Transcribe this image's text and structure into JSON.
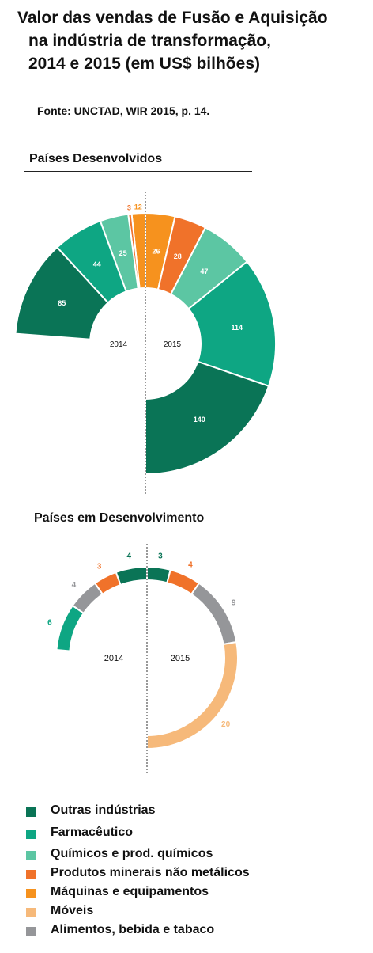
{
  "title_lines": [
    "Valor das vendas de Fusão e Aquisição",
    "na indústria de transformação,",
    "2014 e 2015 (em US$ bilhões)"
  ],
  "source": "Fonte: UNCTAD, WIR 2015, p. 14.",
  "colors": {
    "Outras indústrias": "#0a7456",
    "Farmacêutico": "#0ea683",
    "Químicos e prod. químicos": "#5cc6a3",
    "Produtos minerais não metálicos": "#f0722a",
    "Máquinas e equipamentos": "#f6921e",
    "Móveis": "#f6b97a",
    "Alimentos, bebida e tabaco": "#959699"
  },
  "legend": [
    "Outras indústrias",
    "Farmacêutico",
    "Químicos e prod. químicos",
    "Produtos minerais não metálicos",
    "Máquinas e equipamentos",
    "Móveis",
    "Alimentos, bebida e tabaco"
  ],
  "chart_data": [
    {
      "type": "pie",
      "title": "Países Desenvolvidos",
      "unit": "US$ bilhões",
      "halves": [
        {
          "label": "2014",
          "slices": [
            {
              "category": "Máquinas e equipamentos",
              "value": 12
            },
            {
              "category": "Produtos minerais não metálicos",
              "value": 3
            },
            {
              "category": "Químicos e prod. químicos",
              "value": 25
            },
            {
              "category": "Farmacêutico",
              "value": 44
            },
            {
              "category": "Outras indústrias",
              "value": 85
            }
          ]
        },
        {
          "label": "2015",
          "slices": [
            {
              "category": "Máquinas e equipamentos",
              "value": 26
            },
            {
              "category": "Produtos minerais não metálicos",
              "value": 28
            },
            {
              "category": "Químicos e prod. químicos",
              "value": 47
            },
            {
              "category": "Farmacêutico",
              "value": 114
            },
            {
              "category": "Outras indústrias",
              "value": 140
            }
          ]
        }
      ]
    },
    {
      "type": "pie",
      "title": "Países em Desenvolvimento",
      "unit": "US$ bilhões",
      "halves": [
        {
          "label": "2014",
          "slices": [
            {
              "category": "Outras indústrias",
              "value": 4
            },
            {
              "category": "Produtos minerais não metálicos",
              "value": 3
            },
            {
              "category": "Alimentos, bebida e tabaco",
              "value": 4
            },
            {
              "category": "Farmacêutico",
              "value": 6
            }
          ]
        },
        {
          "label": "2015",
          "slices": [
            {
              "category": "Outras indústrias",
              "value": 3
            },
            {
              "category": "Produtos minerais não metálicos",
              "value": 4
            },
            {
              "category": "Alimentos, bebida e tabaco",
              "value": 9
            },
            {
              "category": "Móveis",
              "value": 20
            }
          ]
        }
      ]
    }
  ]
}
